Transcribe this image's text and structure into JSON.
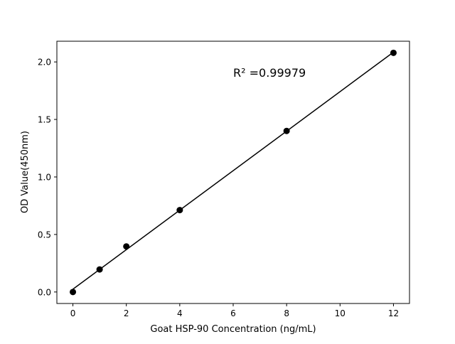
{
  "chart_data": {
    "type": "scatter",
    "title": "",
    "xlabel": "Goat HSP-90 Concentration (ng/mL)",
    "ylabel": "OD Value(450nm)",
    "annotation": "R² =0.99979",
    "xlim": [
      -0.6,
      12.6
    ],
    "ylim": [
      -0.1,
      2.18
    ],
    "xticks": [
      0,
      2,
      4,
      6,
      8,
      10,
      12
    ],
    "yticks": [
      0.0,
      0.5,
      1.0,
      1.5,
      2.0
    ],
    "xtick_labels": [
      "0",
      "2",
      "4",
      "6",
      "8",
      "10",
      "12"
    ],
    "ytick_labels": [
      "0.0",
      "0.5",
      "1.0",
      "1.5",
      "2.0"
    ],
    "grid": false,
    "points": {
      "x": [
        0,
        1,
        2,
        4,
        8,
        12
      ],
      "y": [
        0.0,
        0.196,
        0.396,
        0.712,
        1.4,
        2.079
      ]
    },
    "fit_line": "linear",
    "color": "#000000"
  }
}
